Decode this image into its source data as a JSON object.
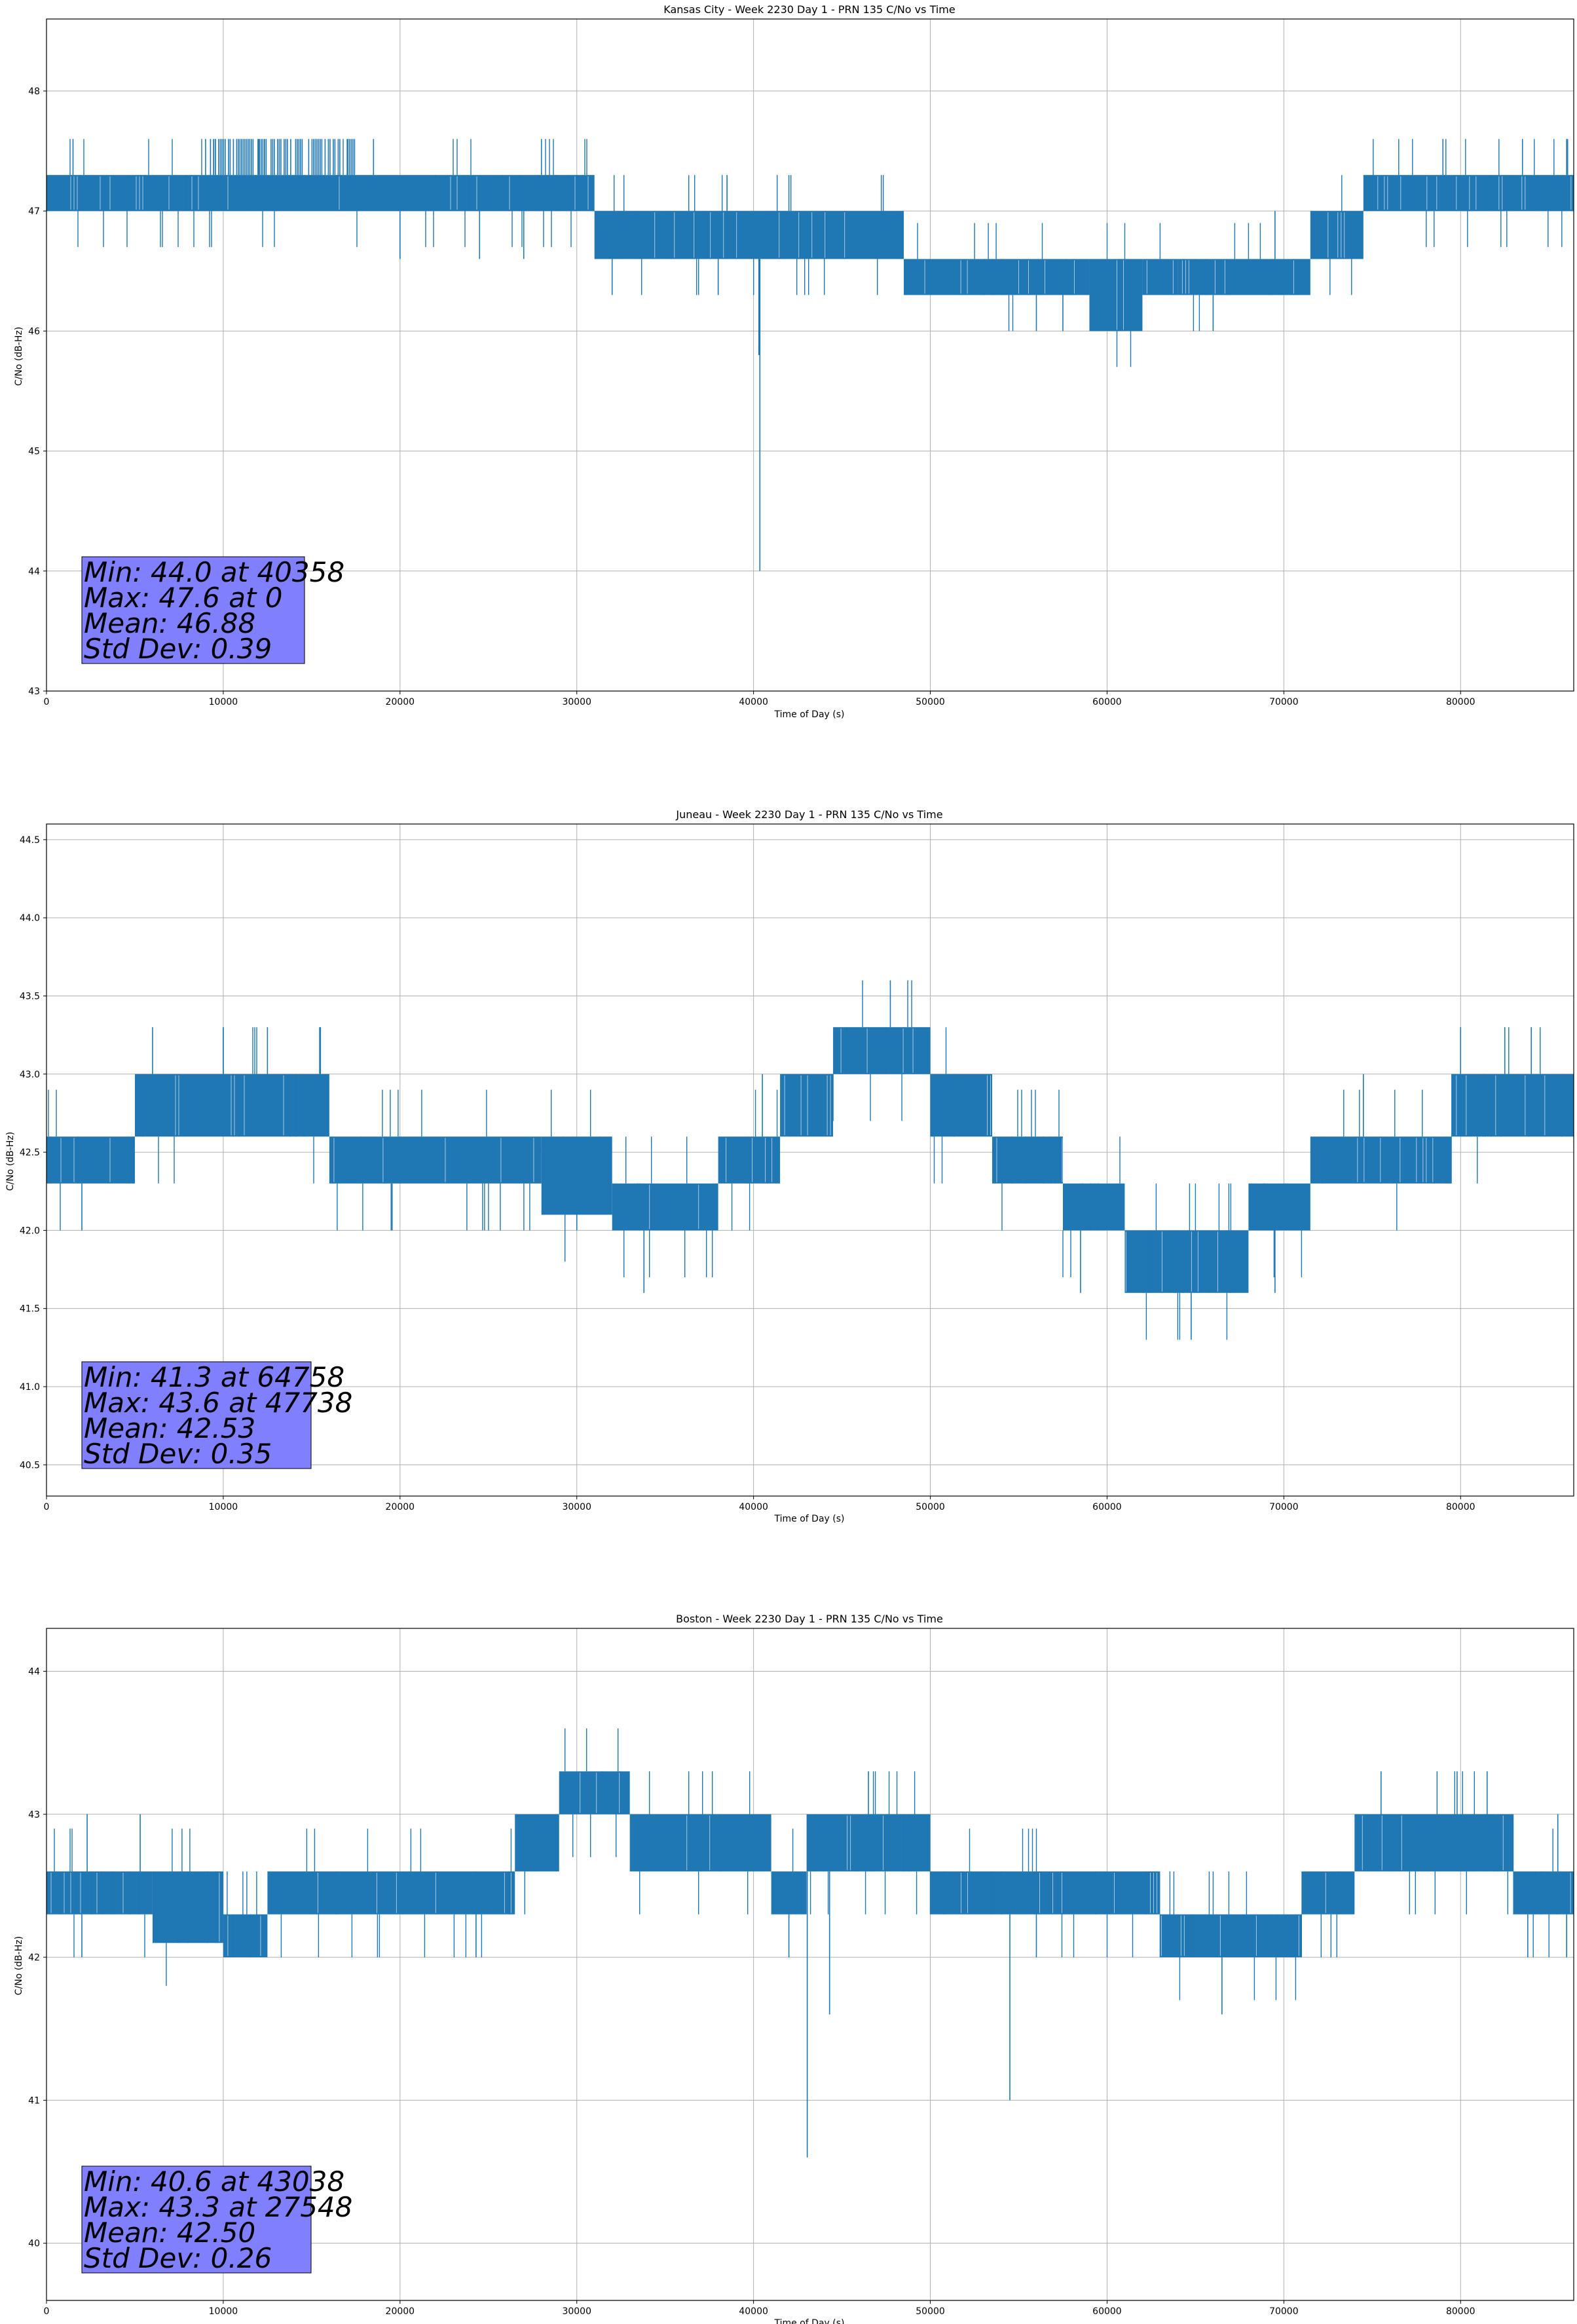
{
  "chart_data": [
    {
      "type": "line",
      "title": "Kansas City - Week 2230 Day 1 - PRN 135 C/No vs Time",
      "xlabel": "Time of Day (s)",
      "ylabel": "C/No (dB-Hz)",
      "xlim": [
        0,
        86400
      ],
      "ylim": [
        43.0,
        48.6
      ],
      "xticks": [
        0,
        10000,
        20000,
        30000,
        40000,
        50000,
        60000,
        70000,
        80000
      ],
      "yticks": [
        43,
        44,
        45,
        46,
        47,
        48
      ],
      "ytick_format": 0,
      "grid": true,
      "series_color": "#1f77b4",
      "stats": [
        "Min: 44.0 at 40358",
        "Max: 47.6 at 0",
        "Mean: 46.88",
        "Std Dev: 0.39"
      ],
      "bands": [
        {
          "x": [
            0,
            31000
          ],
          "lo": 47.0,
          "hi": 47.3
        },
        {
          "x": [
            31000,
            48500
          ],
          "lo": 46.6,
          "hi": 47.0
        },
        {
          "x": [
            48500,
            54000
          ],
          "lo": 46.3,
          "hi": 46.6
        },
        {
          "x": [
            54000,
            59000
          ],
          "lo": 46.3,
          "hi": 46.6
        },
        {
          "x": [
            59000,
            62000
          ],
          "lo": 46.0,
          "hi": 46.6
        },
        {
          "x": [
            62000,
            64000
          ],
          "lo": 46.3,
          "hi": 46.6
        },
        {
          "x": [
            64000,
            71500
          ],
          "lo": 46.3,
          "hi": 46.6
        },
        {
          "x": [
            71500,
            74500
          ],
          "lo": 46.6,
          "hi": 47.0
        },
        {
          "x": [
            74500,
            86400
          ],
          "lo": 47.0,
          "hi": 47.3
        }
      ],
      "spikes": [
        {
          "x": 1500,
          "y": 47.6
        },
        {
          "x": 12000,
          "y": 47.6
        },
        {
          "x": 18500,
          "y": 47.6
        },
        {
          "x": 28000,
          "y": 47.6
        },
        {
          "x": 40358,
          "y": 44.0
        },
        {
          "x": 40300,
          "y": 45.8
        },
        {
          "x": 38000,
          "y": 46.3
        },
        {
          "x": 42000,
          "y": 47.3
        },
        {
          "x": 38500,
          "y": 47.3
        },
        {
          "x": 69500,
          "y": 47.0
        },
        {
          "x": 60500,
          "y": 46.0
        },
        {
          "x": 56000,
          "y": 46.0
        },
        {
          "x": 20000,
          "y": 46.6
        },
        {
          "x": 24500,
          "y": 46.6
        },
        {
          "x": 27000,
          "y": 46.6
        },
        {
          "x": 32000,
          "y": 46.3
        },
        {
          "x": 57500,
          "y": 46.0
        },
        {
          "x": 66000,
          "y": 46.0
        },
        {
          "x": 79000,
          "y": 47.6
        },
        {
          "x": 83500,
          "y": 47.6
        },
        {
          "x": 86000,
          "y": 47.6
        }
      ],
      "peak_band": {
        "x": [
          9000,
          17500
        ],
        "lo": 47.3,
        "hi": 47.6
      }
    },
    {
      "type": "line",
      "title": "Juneau - Week 2230 Day 1 - PRN 135 C/No vs Time",
      "xlabel": "Time of Day (s)",
      "ylabel": "C/No (dB-Hz)",
      "xlim": [
        0,
        86400
      ],
      "ylim": [
        40.3,
        44.6
      ],
      "xticks": [
        0,
        10000,
        20000,
        30000,
        40000,
        50000,
        60000,
        70000,
        80000
      ],
      "yticks": [
        40.5,
        41.0,
        41.5,
        42.0,
        42.5,
        43.0,
        43.5,
        44.0,
        44.5
      ],
      "ytick_format": 1,
      "grid": true,
      "series_color": "#1f77b4",
      "stats": [
        "Min: 41.3 at 64758",
        "Max: 43.6 at 47738",
        "Mean: 42.53",
        "Std Dev: 0.35"
      ],
      "bands": [
        {
          "x": [
            0,
            5000
          ],
          "lo": 42.3,
          "hi": 42.6
        },
        {
          "x": [
            5000,
            16000
          ],
          "lo": 42.6,
          "hi": 43.0
        },
        {
          "x": [
            16000,
            28000
          ],
          "lo": 42.3,
          "hi": 42.6
        },
        {
          "x": [
            28000,
            32000
          ],
          "lo": 42.1,
          "hi": 42.6
        },
        {
          "x": [
            32000,
            38000
          ],
          "lo": 42.0,
          "hi": 42.3
        },
        {
          "x": [
            38000,
            41500
          ],
          "lo": 42.3,
          "hi": 42.6
        },
        {
          "x": [
            41500,
            44500
          ],
          "lo": 42.6,
          "hi": 43.0
        },
        {
          "x": [
            44500,
            50000
          ],
          "lo": 43.0,
          "hi": 43.3
        },
        {
          "x": [
            50000,
            53500
          ],
          "lo": 42.6,
          "hi": 43.0
        },
        {
          "x": [
            53500,
            57500
          ],
          "lo": 42.3,
          "hi": 42.6
        },
        {
          "x": [
            57500,
            61000
          ],
          "lo": 42.0,
          "hi": 42.3
        },
        {
          "x": [
            61000,
            68000
          ],
          "lo": 41.6,
          "hi": 42.0
        },
        {
          "x": [
            68000,
            71500
          ],
          "lo": 42.0,
          "hi": 42.3
        },
        {
          "x": [
            71500,
            79500
          ],
          "lo": 42.3,
          "hi": 42.6
        },
        {
          "x": [
            79500,
            86400
          ],
          "lo": 42.6,
          "hi": 43.0
        }
      ],
      "spikes": [
        {
          "x": 2000,
          "y": 42.0
        },
        {
          "x": 6000,
          "y": 43.3
        },
        {
          "x": 10000,
          "y": 43.3
        },
        {
          "x": 12500,
          "y": 43.3
        },
        {
          "x": 15500,
          "y": 43.3
        },
        {
          "x": 19500,
          "y": 42.0
        },
        {
          "x": 33800,
          "y": 41.6
        },
        {
          "x": 40500,
          "y": 43.0
        },
        {
          "x": 47738,
          "y": 43.6
        },
        {
          "x": 58500,
          "y": 41.6
        },
        {
          "x": 64758,
          "y": 41.3
        },
        {
          "x": 69500,
          "y": 41.6
        },
        {
          "x": 74500,
          "y": 43.0
        },
        {
          "x": 80000,
          "y": 43.3
        },
        {
          "x": 82500,
          "y": 43.3
        },
        {
          "x": 84000,
          "y": 43.3
        },
        {
          "x": 30000,
          "y": 42.0
        },
        {
          "x": 35500,
          "y": 42.0
        }
      ],
      "peak_band": null
    },
    {
      "type": "line",
      "title": "Boston - Week 2230 Day 1 - PRN 135 C/No vs Time",
      "xlabel": "Time of Day (s)",
      "ylabel": "C/No (dB-Hz)",
      "xlim": [
        0,
        86400
      ],
      "ylim": [
        39.6,
        44.3
      ],
      "xticks": [
        0,
        10000,
        20000,
        30000,
        40000,
        50000,
        60000,
        70000,
        80000
      ],
      "yticks": [
        40,
        41,
        42,
        43,
        44
      ],
      "ytick_format": 0,
      "grid": true,
      "series_color": "#1f77b4",
      "stats": [
        "Min: 40.6 at 43038",
        "Max: 43.3 at 27548",
        "Mean: 42.50",
        "Std Dev: 0.26"
      ],
      "bands": [
        {
          "x": [
            0,
            6000
          ],
          "lo": 42.3,
          "hi": 42.6
        },
        {
          "x": [
            6000,
            10000
          ],
          "lo": 42.1,
          "hi": 42.6
        },
        {
          "x": [
            10000,
            12500
          ],
          "lo": 42.0,
          "hi": 42.3
        },
        {
          "x": [
            12500,
            26500
          ],
          "lo": 42.3,
          "hi": 42.6
        },
        {
          "x": [
            26500,
            29000
          ],
          "lo": 42.6,
          "hi": 43.0
        },
        {
          "x": [
            29000,
            33000
          ],
          "lo": 43.0,
          "hi": 43.3
        },
        {
          "x": [
            33000,
            41000
          ],
          "lo": 42.6,
          "hi": 43.0
        },
        {
          "x": [
            41000,
            43000
          ],
          "lo": 42.3,
          "hi": 42.6
        },
        {
          "x": [
            43000,
            50000
          ],
          "lo": 42.6,
          "hi": 43.0
        },
        {
          "x": [
            50000,
            57000
          ],
          "lo": 42.3,
          "hi": 42.6
        },
        {
          "x": [
            57000,
            63000
          ],
          "lo": 42.3,
          "hi": 42.6
        },
        {
          "x": [
            63000,
            71000
          ],
          "lo": 42.0,
          "hi": 42.3
        },
        {
          "x": [
            71000,
            74000
          ],
          "lo": 42.3,
          "hi": 42.6
        },
        {
          "x": [
            74000,
            83000
          ],
          "lo": 42.6,
          "hi": 43.0
        },
        {
          "x": [
            83000,
            86400
          ],
          "lo": 42.3,
          "hi": 42.6
        }
      ],
      "spikes": [
        {
          "x": 2000,
          "y": 42.0
        },
        {
          "x": 2300,
          "y": 43.0
        },
        {
          "x": 5300,
          "y": 43.0
        },
        {
          "x": 43038,
          "y": 40.6
        },
        {
          "x": 44300,
          "y": 41.6
        },
        {
          "x": 54500,
          "y": 41.0
        },
        {
          "x": 66500,
          "y": 41.6
        },
        {
          "x": 42000,
          "y": 42.0
        },
        {
          "x": 40000,
          "y": 43.0
        },
        {
          "x": 46500,
          "y": 43.3
        },
        {
          "x": 48500,
          "y": 43.0
        },
        {
          "x": 56000,
          "y": 42.0
        },
        {
          "x": 75500,
          "y": 43.3
        },
        {
          "x": 79800,
          "y": 43.3
        },
        {
          "x": 81500,
          "y": 43.3
        },
        {
          "x": 85500,
          "y": 43.0
        },
        {
          "x": 86000,
          "y": 42.0
        },
        {
          "x": 83800,
          "y": 42.0
        },
        {
          "x": 24300,
          "y": 42.0
        }
      ],
      "peak_band": null
    }
  ]
}
